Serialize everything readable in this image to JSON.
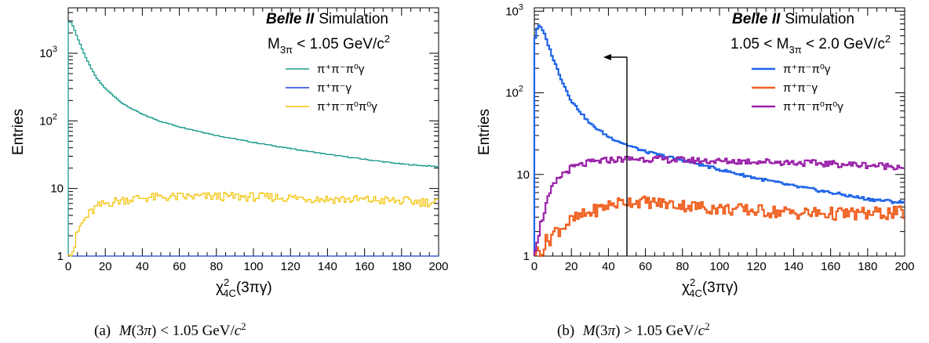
{
  "chart_data": [
    {
      "type": "line",
      "panel": "a",
      "experiment": "Belle II",
      "subtitle": "Simulation",
      "selection": {
        "prefix": "M",
        "sub": "3π",
        "suffix": " < 1.05 GeV/c",
        "sup": "2"
      },
      "xlabel": {
        "main": "χ",
        "sup": "2",
        "sub": "4C",
        "rest": "(3πγ)"
      },
      "ylabel": "Entries",
      "scale_y": "log",
      "xlim": [
        0,
        200
      ],
      "ylim": [
        1,
        4700
      ],
      "x_ticks": [
        "0",
        "20",
        "40",
        "60",
        "80",
        "100",
        "120",
        "140",
        "160",
        "180",
        "200"
      ],
      "y_ticks": [
        {
          "value": 1,
          "label": "1",
          "sup": ""
        },
        {
          "value": 10,
          "label": "10",
          "sup": ""
        },
        {
          "value": 100,
          "label": "10",
          "sup": "2"
        },
        {
          "value": 1000,
          "label": "10",
          "sup": "3"
        }
      ],
      "legend_position": "top-right",
      "series": [
        {
          "name": {
            "base": "π",
            "parts": [
              [
                "+",
                ""
              ],
              [
                "-",
                ""
              ],
              [
                "0",
                ""
              ],
              [
                "",
                "γ"
              ]
            ]
          },
          "label": "π⁺π⁻π⁰γ",
          "color": "#1a9a8c",
          "points": [
            [
              0,
              3000
            ],
            [
              2,
              2800
            ],
            [
              5,
              1700
            ],
            [
              10,
              800
            ],
            [
              15,
              440
            ],
            [
              20,
              300
            ],
            [
              30,
              175
            ],
            [
              40,
              125
            ],
            [
              50,
              98
            ],
            [
              60,
              82
            ],
            [
              80,
              61
            ],
            [
              100,
              48
            ],
            [
              120,
              39
            ],
            [
              140,
              32
            ],
            [
              160,
              27
            ],
            [
              180,
              23
            ],
            [
              200,
              21
            ]
          ]
        },
        {
          "label": "π⁺π⁻γ",
          "color": "#1f3fd6",
          "points": [
            [
              0,
              1
            ],
            [
              200,
              1
            ]
          ]
        },
        {
          "label": "π⁺π⁻π⁰π⁰γ",
          "color": "#f2c40c",
          "points": [
            [
              0,
              1
            ],
            [
              3,
              1.3
            ],
            [
              6,
              2.6
            ],
            [
              10,
              3.8
            ],
            [
              15,
              5.2
            ],
            [
              20,
              6
            ],
            [
              30,
              6.8
            ],
            [
              40,
              7.3
            ],
            [
              60,
              7.5
            ],
            [
              80,
              7.6
            ],
            [
              100,
              7.5
            ],
            [
              120,
              7.3
            ],
            [
              140,
              7
            ],
            [
              160,
              6.8
            ],
            [
              180,
              6.5
            ],
            [
              200,
              6.2
            ]
          ]
        }
      ]
    },
    {
      "type": "line",
      "panel": "b",
      "experiment": "Belle II",
      "subtitle": "Simulation",
      "selection": {
        "prefix": "1.05 < M",
        "sub": "3π",
        "suffix": " < 2.0 GeV/c",
        "sup": "2"
      },
      "xlabel": {
        "main": "χ",
        "sup": "2",
        "sub": "4C",
        "rest": "(3πγ)"
      },
      "ylabel": "Entries",
      "scale_y": "log",
      "xlim": [
        0,
        200
      ],
      "ylim": [
        1,
        1100
      ],
      "x_ticks": [
        "0",
        "20",
        "40",
        "60",
        "80",
        "100",
        "120",
        "140",
        "160",
        "180",
        "200"
      ],
      "y_ticks": [
        {
          "value": 1,
          "label": "1",
          "sup": ""
        },
        {
          "value": 10,
          "label": "10",
          "sup": ""
        },
        {
          "value": 100,
          "label": "10",
          "sup": "2"
        },
        {
          "value": 1000,
          "label": "10",
          "sup": "3"
        }
      ],
      "legend_position": "top-right",
      "cut": {
        "x": 50
      },
      "series": [
        {
          "label": "π⁺π⁻π⁰γ",
          "color": "#1f63e8",
          "points": [
            [
              0,
              420
            ],
            [
              2,
              700
            ],
            [
              5,
              560
            ],
            [
              10,
              270
            ],
            [
              15,
              140
            ],
            [
              20,
              80
            ],
            [
              30,
              42
            ],
            [
              40,
              29
            ],
            [
              50,
              23
            ],
            [
              60,
              19
            ],
            [
              80,
              15
            ],
            [
              100,
              11.5
            ],
            [
              120,
              9
            ],
            [
              140,
              7.2
            ],
            [
              160,
              6
            ],
            [
              180,
              5
            ],
            [
              200,
              4.5
            ]
          ]
        },
        {
          "label": "π⁺π⁻γ",
          "color": "#f06020",
          "points": [
            [
              0,
              1
            ],
            [
              5,
              1.3
            ],
            [
              10,
              1.9
            ],
            [
              20,
              2.7
            ],
            [
              30,
              3.4
            ],
            [
              40,
              4.2
            ],
            [
              50,
              4.7
            ],
            [
              60,
              4.6
            ],
            [
              80,
              4.2
            ],
            [
              100,
              3.8
            ],
            [
              120,
              3.6
            ],
            [
              140,
              3.4
            ],
            [
              160,
              3.3
            ],
            [
              180,
              3.3
            ],
            [
              200,
              3.4
            ]
          ]
        },
        {
          "label": "π⁺π⁻π⁰π⁰γ",
          "color": "#9a22a8",
          "points": [
            [
              0,
              1.2
            ],
            [
              3,
              2.2
            ],
            [
              6,
              4
            ],
            [
              10,
              7
            ],
            [
              15,
              10
            ],
            [
              20,
              12
            ],
            [
              30,
              14
            ],
            [
              40,
              15
            ],
            [
              50,
              15.5
            ],
            [
              60,
              15.5
            ],
            [
              80,
              15
            ],
            [
              100,
              14.5
            ],
            [
              120,
              14.5
            ],
            [
              140,
              14
            ],
            [
              160,
              13.5
            ],
            [
              180,
              13
            ],
            [
              200,
              12.5
            ]
          ]
        }
      ]
    }
  ],
  "captions": [
    {
      "label": "(a)",
      "prefix": "M(3π) < 1.05 GeV/c",
      "sup": "2"
    },
    {
      "label": "(b)",
      "prefix": "M(3π) > 1.05 GeV/c",
      "sup": "2"
    }
  ]
}
